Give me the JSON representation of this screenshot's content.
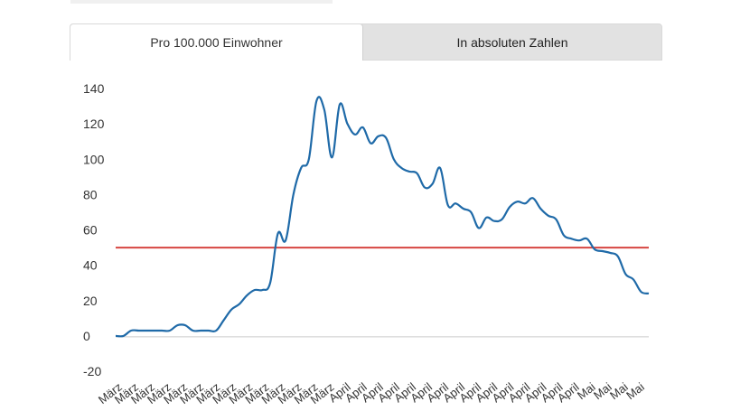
{
  "tabs": [
    {
      "label": "Pro 100.000 Einwohner",
      "active": true
    },
    {
      "label": "In absoluten Zahlen",
      "active": false
    }
  ],
  "colors": {
    "line": "#1f6aa8",
    "threshold": "#d64541",
    "baseline": "#cccccc"
  },
  "chart_data": {
    "type": "line",
    "title": "",
    "xlabel": "",
    "ylabel": "",
    "ylim": [
      -20,
      140
    ],
    "yticks": [
      -20,
      0,
      20,
      40,
      60,
      80,
      100,
      120,
      140
    ],
    "grid": false,
    "threshold": 50,
    "x_tick_labels": [
      "März",
      "März",
      "März",
      "März",
      "März",
      "März",
      "März",
      "März",
      "März",
      "März",
      "März",
      "März",
      "März",
      "März",
      "April",
      "April",
      "April",
      "April",
      "April",
      "April",
      "April",
      "April",
      "April",
      "April",
      "April",
      "April",
      "April",
      "April",
      "April",
      "Mai",
      "Mai",
      "Mai",
      "Mai"
    ],
    "series": [
      {
        "values": [
          0,
          0,
          3,
          3,
          3,
          3,
          3,
          3,
          6,
          6,
          3,
          3,
          3,
          3,
          9,
          15,
          18,
          23,
          26,
          26,
          30,
          58,
          54,
          80,
          95,
          100,
          133,
          128,
          101,
          131,
          120,
          114,
          118,
          109,
          113,
          112,
          100,
          95,
          93,
          92,
          84,
          86,
          95,
          74,
          75,
          72,
          70,
          61,
          67,
          65,
          66,
          73,
          76,
          75,
          78,
          72,
          68,
          66,
          57,
          55,
          54,
          55,
          49,
          48,
          47,
          45,
          35,
          32,
          25,
          24
        ]
      }
    ]
  }
}
